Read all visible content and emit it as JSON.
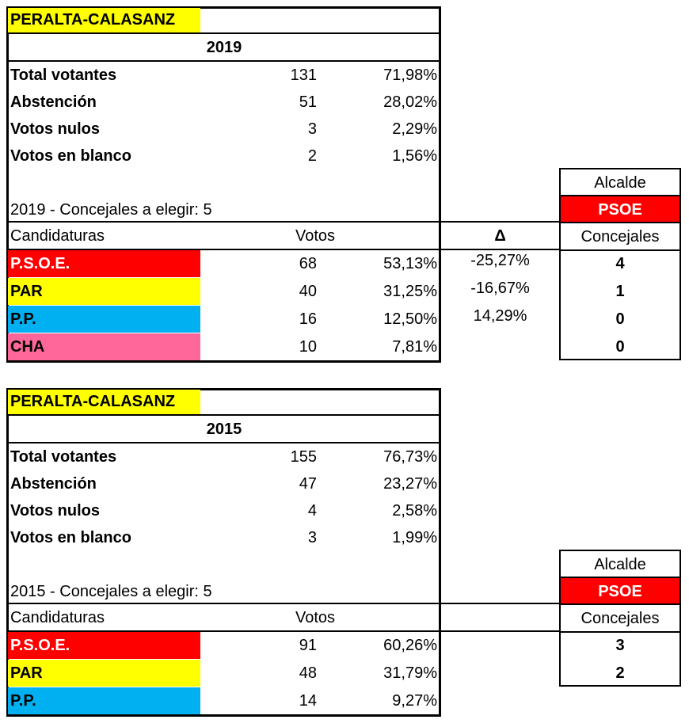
{
  "colors": {
    "title_bg": "#ffff00",
    "alcalde_bg": "#ff0000",
    "PSOE": "#ff0000",
    "PAR": "#ffff00",
    "PP": "#00b0f0",
    "CHA": "#ff6699"
  },
  "tables": [
    {
      "municipality": "PERALTA-CALASANZ",
      "year": "2019",
      "stats": [
        {
          "label": "Total votantes",
          "value": "131",
          "pct": "71,98%"
        },
        {
          "label": "Abstención",
          "value": "51",
          "pct": "28,02%"
        },
        {
          "label": "Votos nulos",
          "value": "3",
          "pct": "2,29%"
        },
        {
          "label": "Votos en blanco",
          "value": "2",
          "pct": "1,56%"
        }
      ],
      "concejales_note": "2019 - Concejales a elegir: 5",
      "headers": {
        "candidaturas": "Candidaturas",
        "votos": "Votos",
        "delta": "Δ",
        "concejales": "Concejales",
        "alcalde": "Alcalde"
      },
      "alcalde": "PSOE",
      "parties": [
        {
          "name": "P.S.O.E.",
          "color_key": "PSOE",
          "votes": "68",
          "pct": "53,13%",
          "delta": "-25,27%",
          "seats": "4"
        },
        {
          "name": "PAR",
          "color_key": "PAR",
          "votes": "40",
          "pct": "31,25%",
          "delta": "-16,67%",
          "seats": "1"
        },
        {
          "name": "P.P.",
          "color_key": "PP",
          "votes": "16",
          "pct": "12,50%",
          "delta": "14,29%",
          "seats": "0"
        },
        {
          "name": "CHA",
          "color_key": "CHA",
          "votes": "10",
          "pct": "7,81%",
          "delta": "",
          "seats": "0"
        }
      ]
    },
    {
      "municipality": "PERALTA-CALASANZ",
      "year": "2015",
      "stats": [
        {
          "label": "Total votantes",
          "value": "155",
          "pct": "76,73%"
        },
        {
          "label": "Abstención",
          "value": "47",
          "pct": "23,27%"
        },
        {
          "label": "Votos nulos",
          "value": "4",
          "pct": "2,58%"
        },
        {
          "label": "Votos en blanco",
          "value": "3",
          "pct": "1,99%"
        }
      ],
      "concejales_note": "2015 - Concejales a elegir: 5",
      "headers": {
        "candidaturas": "Candidaturas",
        "votos": "Votos",
        "delta": "",
        "concejales": "Concejales",
        "alcalde": "Alcalde"
      },
      "alcalde": "PSOE",
      "parties": [
        {
          "name": "P.S.O.E.",
          "color_key": "PSOE",
          "votes": "91",
          "pct": "60,26%",
          "delta": "",
          "seats": "3"
        },
        {
          "name": "PAR",
          "color_key": "PAR",
          "votes": "48",
          "pct": "31,79%",
          "delta": "",
          "seats": "2"
        },
        {
          "name": "P.P.",
          "color_key": "PP",
          "votes": "14",
          "pct": "9,27%",
          "delta": "",
          "seats": ""
        }
      ]
    }
  ]
}
